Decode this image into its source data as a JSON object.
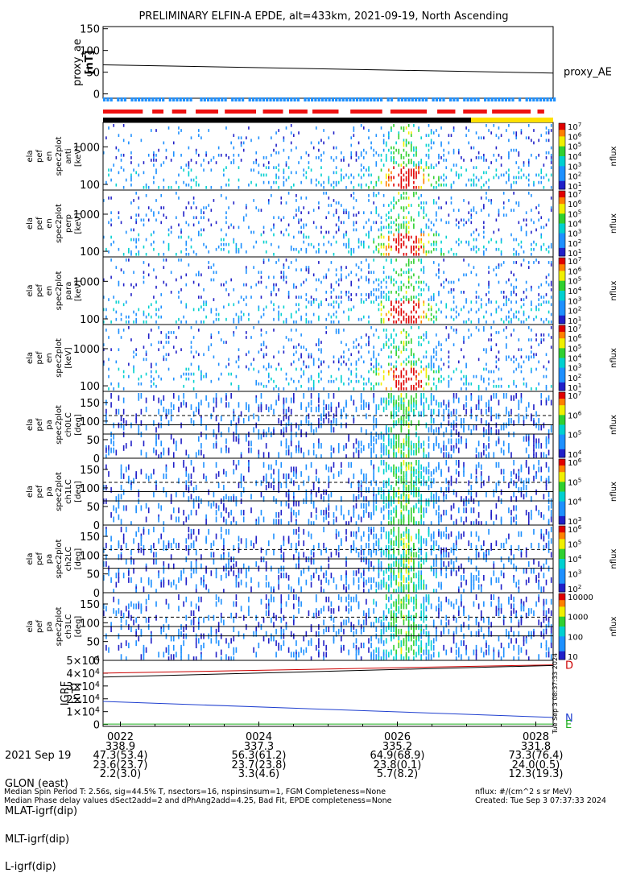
{
  "title": "PRELIMINARY ELFIN-A EPDE, alt=433km, 2021-09-19, North Ascending",
  "colors": {
    "quality_blue": "#1e90ff",
    "quality_red": "#ee1111",
    "status_black": "#000000",
    "status_yellow": "#ffe000",
    "igrf_d": "#cc0000",
    "igrf_n": "#1f3fcf",
    "igrf_e": "#1faf1f"
  },
  "stamp": "Tue Sep  3 08:37:33 2024",
  "chart_data": [
    {
      "type": "line",
      "panel": "proxy_ae",
      "ylabel": [
        "proxy_ae",
        "[nT]"
      ],
      "ylim": [
        -10,
        155
      ],
      "yticks": [
        "150",
        "100",
        "50",
        "0"
      ],
      "ytick_values": [
        150,
        100,
        50,
        0
      ],
      "series": [
        {
          "name": "proxy_AE",
          "x": [
            "0021:45",
            "0028:15"
          ],
          "values": [
            67,
            48
          ]
        }
      ]
    },
    {
      "type": "heatmap",
      "panel": "energy spectrogram (anti)",
      "ylabel": [
        "ela",
        "pef",
        "en",
        "spec2plot",
        "anti",
        "[keV]"
      ],
      "yticks": [
        "1000",
        "100"
      ],
      "ytick_values": [
        1000,
        100
      ],
      "colorbar_ticks": [
        "10^7",
        "10^6",
        "10^5",
        "10^4",
        "10^3",
        "10^2",
        "10^1"
      ],
      "colorbar_label": "nflux"
    },
    {
      "type": "heatmap",
      "panel": "energy spectrogram (perp)",
      "ylabel": [
        "ela",
        "pef",
        "en",
        "spec2plot",
        "perp",
        "[keV]"
      ],
      "yticks": [
        "1000",
        "100"
      ],
      "ytick_values": [
        1000,
        100
      ],
      "colorbar_ticks": [
        "10^7",
        "10^6",
        "10^5",
        "10^4",
        "10^3",
        "10^2",
        "10^1"
      ],
      "colorbar_label": "nflux"
    },
    {
      "type": "heatmap",
      "panel": "energy spectrogram (para)",
      "ylabel": [
        "ela",
        "pef",
        "en",
        "spec2plot",
        "para",
        "[keV]"
      ],
      "yticks": [
        "1000",
        "100"
      ],
      "ytick_values": [
        1000,
        100
      ],
      "colorbar_ticks": [
        "10^7",
        "10^6",
        "10^5",
        "10^4",
        "10^3",
        "10^2",
        "10^1"
      ],
      "colorbar_label": "nflux"
    },
    {
      "type": "heatmap",
      "panel": "energy spectrogram",
      "ylabel": [
        "ela",
        "pef",
        "en",
        "spec2plot",
        "[keV]"
      ],
      "yticks": [
        "1000",
        "100"
      ],
      "ytick_values": [
        1000,
        100
      ],
      "colorbar_ticks": [
        "10^7",
        "10^6",
        "10^5",
        "10^4",
        "10^3",
        "10^2",
        "10^1"
      ],
      "colorbar_label": "nflux"
    },
    {
      "type": "heatmap",
      "panel": "pitch angle ch0LC",
      "ylabel": [
        "ela",
        "pef",
        "pa",
        "spec2plot",
        "ch0LC",
        "[deg]"
      ],
      "ylim": [
        0,
        180
      ],
      "yticks": [
        "150",
        "100",
        "50",
        "0"
      ],
      "ytick_values": [
        150,
        100,
        50,
        0
      ],
      "colorbar_ticks": [
        "10^7",
        "10^6",
        "10^5",
        "10^4"
      ],
      "colorbar_label": "nflux"
    },
    {
      "type": "heatmap",
      "panel": "pitch angle ch1LC",
      "ylabel": [
        "ela",
        "pef",
        "pa",
        "spec2plot",
        "ch1LC",
        "[deg]"
      ],
      "ylim": [
        0,
        180
      ],
      "yticks": [
        "150",
        "100",
        "50",
        "0"
      ],
      "ytick_values": [
        150,
        100,
        50,
        0
      ],
      "colorbar_ticks": [
        "10^6",
        "10^5",
        "10^4",
        "10^3"
      ],
      "colorbar_label": "nflux"
    },
    {
      "type": "heatmap",
      "panel": "pitch angle ch2LC",
      "ylabel": [
        "ela",
        "pef",
        "pa",
        "spec2plot",
        "ch2LC",
        "[deg]"
      ],
      "ylim": [
        0,
        180
      ],
      "yticks": [
        "150",
        "100",
        "50",
        "0"
      ],
      "ytick_values": [
        150,
        100,
        50,
        0
      ],
      "colorbar_ticks": [
        "10^6",
        "10^5",
        "10^4",
        "10^3",
        "10^2"
      ],
      "colorbar_label": "nflux"
    },
    {
      "type": "heatmap",
      "panel": "pitch angle ch3LC",
      "ylabel": [
        "ela",
        "pef",
        "pa",
        "spec2plot",
        "ch3LC",
        "[deg]"
      ],
      "ylim": [
        0,
        180
      ],
      "yticks": [
        "150",
        "100",
        "50",
        "0"
      ],
      "ytick_values": [
        150,
        100,
        50,
        0
      ],
      "colorbar_ticks": [
        "10000",
        "1000",
        "100",
        "10"
      ],
      "colorbar_label": "nflux"
    },
    {
      "type": "line",
      "panel": "IGRF",
      "ylabel": [
        "IGRF",
        "[nT]"
      ],
      "ylim": [
        -1500,
        50000
      ],
      "yticks": [
        "5×10^4",
        "4×10^4",
        "3×10^4",
        "2×10^4",
        "1×10^4",
        "0"
      ],
      "ytick_values": [
        50000,
        40000,
        30000,
        20000,
        10000,
        0
      ],
      "series": [
        {
          "name": "D",
          "x": [
            "0021:45",
            "0028:15"
          ],
          "values": [
            40000,
            46500
          ]
        },
        {
          "name": "N",
          "x": [
            "0021:45",
            "0028:15"
          ],
          "values": [
            18000,
            5500
          ]
        },
        {
          "name": "E",
          "x": [
            "0021:45",
            "0028:15"
          ],
          "values": [
            300,
            300
          ]
        },
        {
          "x": [
            "0021:45",
            "0028:15"
          ],
          "values": [
            37000,
            46000
          ]
        }
      ]
    }
  ],
  "orbit": {
    "date_label": "2021 Sep 19",
    "row_labels": [
      "GLON (east)",
      "MLAT-igrf(dip)",
      "MLT-igrf(dip)",
      "L-igrf(dip)"
    ],
    "times": [
      "0022",
      "0024",
      "0026",
      "0028"
    ],
    "glon": [
      "338.9",
      "337.3",
      "335.2",
      "331.8"
    ],
    "mlat": [
      "47.3(53.4)",
      "56.3(61.2)",
      "64.9(68.9)",
      "73.3(76.4)"
    ],
    "mlt": [
      "23.6(23.7)",
      "23.7(23.8)",
      "23.8(0.1)",
      "24.0(0.5)"
    ],
    "lshell": [
      "2.2(3.0)",
      "3.3(4.6)",
      "5.7(8.2)",
      "12.3(19.3)"
    ]
  },
  "footer": {
    "line1": "Median Spin Period T: 2.56s, sig=44.5% T, nsectors=16, nspinsinsum=1, FGM Completeness=None",
    "line2": "Median Phase delay values dSect2add=2 and dPhAng2add=4.25, Bad Fit, EPDE completeness=None",
    "units": "nflux: #/(cm^2 s sr MeV)",
    "created": "Created: Tue Sep  3 07:37:33 2024"
  }
}
